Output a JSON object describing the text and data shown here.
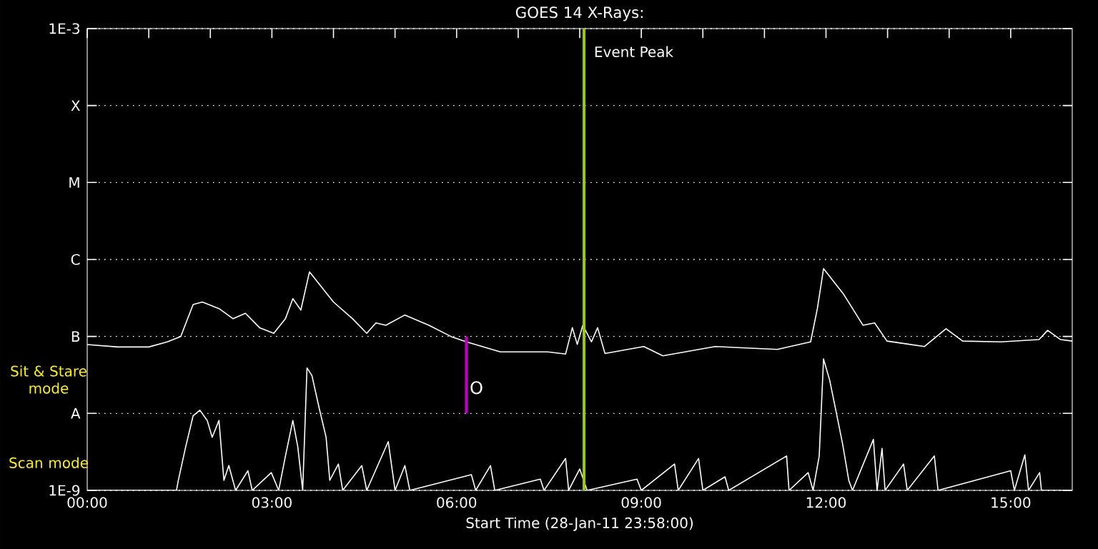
{
  "chart_data": {
    "type": "line",
    "title": "GOES 14 X-Rays:",
    "xlabel": "Start Time (28-Jan-11 23:58:00)",
    "xlim": [
      0,
      16
    ],
    "ylim": [
      1e-09,
      0.001
    ],
    "log": "y",
    "grid": "y",
    "xticks": [
      {
        "value": 0,
        "label": "00:00"
      },
      {
        "value": 1,
        "label": null
      },
      {
        "value": 2,
        "label": null
      },
      {
        "value": 3,
        "label": "03:00"
      },
      {
        "value": 4,
        "label": null
      },
      {
        "value": 5,
        "label": null
      },
      {
        "value": 6,
        "label": "06:00"
      },
      {
        "value": 7,
        "label": null
      },
      {
        "value": 8,
        "label": null
      },
      {
        "value": 9,
        "label": "09:00"
      },
      {
        "value": 10,
        "label": null
      },
      {
        "value": 11,
        "label": null
      },
      {
        "value": 12,
        "label": "12:00"
      },
      {
        "value": 13,
        "label": null
      },
      {
        "value": 14,
        "label": null
      },
      {
        "value": 15,
        "label": "15:00"
      }
    ],
    "yticks": [
      {
        "value": 1e-09,
        "label": "1E-9"
      },
      {
        "value": 1e-08,
        "label": "A"
      },
      {
        "value": 1e-07,
        "label": "B"
      },
      {
        "value": 1e-06,
        "label": "C"
      },
      {
        "value": 1e-05,
        "label": "M"
      },
      {
        "value": 0.0001,
        "label": "X"
      },
      {
        "value": 0.001,
        "label": "1E-3"
      }
    ],
    "series": [
      {
        "color": "#ffffff",
        "x": [
          0,
          0.5,
          1.0,
          1.3,
          1.52,
          1.72,
          1.87,
          2.14,
          2.37,
          2.57,
          2.8,
          3.03,
          3.22,
          3.34,
          3.47,
          3.61,
          4.0,
          4.31,
          4.54,
          4.69,
          4.85,
          5.16,
          5.55,
          5.93,
          6.16,
          6.71,
          7.48,
          7.77,
          7.88,
          7.96,
          8.05,
          8.19,
          8.29,
          8.41,
          9.04,
          9.35,
          10.2,
          11.21,
          11.75,
          11.86,
          11.96,
          12.29,
          12.6,
          12.79,
          12.99,
          13.6,
          13.95,
          14.22,
          14.84,
          15.46,
          15.6,
          15.81,
          16.0
        ],
        "values": [
          7.85e-08,
          7.3e-08,
          7.3e-08,
          8.5e-08,
          1e-07,
          2.6e-07,
          2.8e-07,
          2.3e-07,
          1.7e-07,
          2e-07,
          1.3e-07,
          1.1e-07,
          1.7e-07,
          3.1e-07,
          2.2e-07,
          6.9e-07,
          2.8e-07,
          1.7e-07,
          1.1e-07,
          1.5e-07,
          1.4e-07,
          1.9e-07,
          1.4e-07,
          9.8e-08,
          8.5e-08,
          6.3e-08,
          6.3e-08,
          5.9e-08,
          1.3e-07,
          7.9e-08,
          1.4e-07,
          8.5e-08,
          1.3e-07,
          6e-08,
          7.4e-08,
          5.6e-08,
          7.4e-08,
          6.8e-08,
          8.5e-08,
          2.3e-07,
          7.6e-07,
          3.5e-07,
          1.4e-07,
          1.5e-07,
          8.7e-08,
          7.4e-08,
          1.26e-07,
          8.7e-08,
          8.5e-08,
          9.1e-08,
          1.2e-07,
          9.1e-08,
          8.7e-08
        ]
      },
      {
        "color": "#ffffff",
        "x": [
          0,
          1.45,
          1.48,
          1.6,
          1.72,
          1.83,
          1.95,
          2.03,
          2.14,
          2.22,
          2.3,
          2.41,
          2.61,
          2.68,
          2.99,
          3.11,
          3.22,
          3.34,
          3.42,
          3.5,
          3.57,
          3.65,
          3.77,
          3.88,
          3.94,
          4.08,
          4.15,
          4.46,
          4.54,
          4.89,
          5.0,
          5.16,
          5.24,
          6.24,
          6.31,
          6.55,
          6.62,
          7.36,
          7.42,
          7.77,
          7.82,
          8.0,
          8.12,
          8.93,
          9.0,
          9.54,
          9.6,
          9.93,
          10.0,
          10.36,
          10.42,
          11.36,
          11.4,
          11.71,
          11.79,
          11.89,
          11.96,
          12.06,
          12.17,
          12.27,
          12.37,
          12.43,
          12.77,
          12.83,
          12.91,
          12.96,
          13.26,
          13.32,
          13.76,
          13.82,
          15.0,
          15.06,
          15.23,
          15.29,
          15.47,
          15.5,
          16.0
        ],
        "values": [
          1e-09,
          1e-09,
          1.35e-09,
          3.7e-09,
          9.3e-09,
          1.1e-08,
          8.1e-09,
          4.9e-09,
          8.1e-09,
          1.35e-09,
          2.1e-09,
          1e-09,
          1.8e-09,
          1e-09,
          1.7e-09,
          1e-09,
          2.8e-09,
          8.1e-09,
          3.7e-09,
          1e-09,
          3.9e-08,
          3.1e-08,
          1.15e-08,
          4.9e-09,
          1.35e-09,
          2.2e-09,
          1e-09,
          2.1e-09,
          1e-09,
          4.3e-09,
          1e-09,
          2.1e-09,
          1e-09,
          1.6e-09,
          1e-09,
          2.1e-09,
          1e-09,
          1.4e-09,
          1e-09,
          2.6e-09,
          1e-09,
          1.9e-09,
          1e-09,
          1.4e-09,
          1e-09,
          2.2e-09,
          1e-09,
          2.6e-09,
          1e-09,
          1.5e-09,
          1e-09,
          2.8e-09,
          1e-09,
          1.7e-09,
          1e-09,
          2.8e-09,
          5.1e-08,
          2.7e-08,
          1e-08,
          4e-09,
          1.35e-09,
          1e-09,
          4.6e-09,
          1e-09,
          3.5e-09,
          1e-09,
          2.2e-09,
          1e-09,
          2.8e-09,
          1e-09,
          1.8e-09,
          1e-09,
          2.9e-09,
          1e-09,
          1.7e-09,
          1e-09,
          1e-09
        ]
      }
    ],
    "ref_lines": [
      {
        "axis": "x",
        "value": 8.07,
        "label": "Event Peak",
        "color": "#99cc00"
      },
      {
        "axis": "x",
        "value": 6.16,
        "label": "O",
        "color": "#c000c0"
      }
    ],
    "annotations": [
      "Sit & Stare mode",
      "Scan mode"
    ]
  }
}
